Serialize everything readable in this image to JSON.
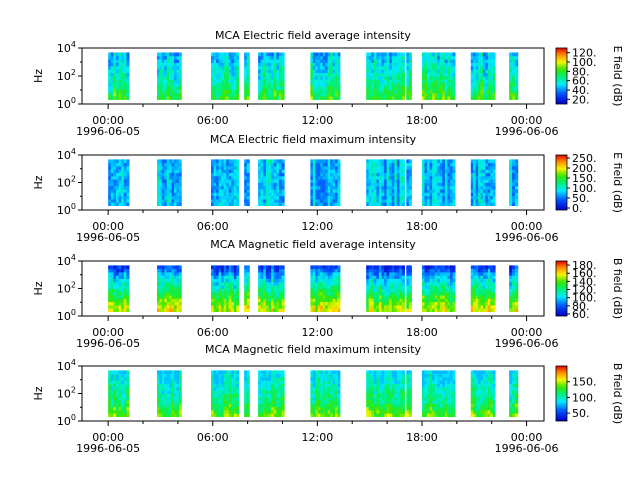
{
  "chart_data": [
    {
      "type": "heatmap",
      "title": "MCA  Electric field average intensity",
      "ylabel": "Hz",
      "colorbar_label": "E field (dB)",
      "colorbar_ticks": [
        "20.",
        "40.",
        "60.",
        "80.",
        "100.",
        "120."
      ],
      "colorbar_range": [
        10,
        130
      ],
      "y_ticks": [
        "10^0",
        "10^2",
        "10^4"
      ],
      "x_ticks": [
        "00:00",
        "06:00",
        "12:00",
        "18:00",
        "00:00"
      ],
      "x_start_date": "1996-06-05",
      "x_end_date": "1996-06-06",
      "profile": [
        [
          0,
          0.6
        ],
        [
          0.35,
          0.45
        ],
        [
          1,
          0.3
        ]
      ],
      "intensity_range": [
        0.2,
        0.95
      ],
      "data_segments": [
        [
          0.0,
          1.2
        ],
        [
          2.8,
          4.2
        ],
        [
          5.9,
          7.5
        ],
        [
          7.8,
          8.1
        ],
        [
          8.6,
          10.1
        ],
        [
          11.6,
          13.3
        ],
        [
          14.8,
          17.0
        ],
        [
          17.1,
          17.4
        ],
        [
          18.0,
          19.9
        ],
        [
          20.8,
          22.2
        ],
        [
          23.0,
          23.5
        ]
      ],
      "time_range_hours": [
        -1.5,
        25.0
      ]
    },
    {
      "type": "heatmap",
      "title": "MCA  Electric field maximum intensity",
      "ylabel": "Hz",
      "colorbar_label": "E field (dB)",
      "colorbar_ticks": [
        "0.",
        "50.",
        "100.",
        "150.",
        "200.",
        "250."
      ],
      "colorbar_range": [
        -10,
        265
      ],
      "y_ticks": [
        "10^0",
        "10^2",
        "10^4"
      ],
      "x_ticks": [
        "00:00",
        "06:00",
        "12:00",
        "18:00",
        "00:00"
      ],
      "x_start_date": "1996-06-05",
      "x_end_date": "1996-06-06",
      "profile": [
        [
          0,
          0.3
        ],
        [
          1,
          0.3
        ]
      ],
      "intensity_range": [
        0.2,
        0.55
      ],
      "data_segments": [
        [
          0.0,
          1.2
        ],
        [
          2.8,
          4.2
        ],
        [
          5.9,
          7.5
        ],
        [
          7.8,
          8.1
        ],
        [
          8.6,
          10.1
        ],
        [
          11.6,
          13.3
        ],
        [
          14.8,
          17.0
        ],
        [
          17.1,
          17.4
        ],
        [
          18.0,
          19.9
        ],
        [
          20.8,
          22.2
        ],
        [
          23.0,
          23.5
        ]
      ],
      "time_range_hours": [
        -1.5,
        25.0
      ]
    },
    {
      "type": "heatmap",
      "title": "MCA  Magnetic field average intensity",
      "ylabel": "Hz",
      "colorbar_label": "B field (dB)",
      "colorbar_ticks": [
        "60.",
        "80.",
        "100.",
        "120.",
        "140.",
        "160.",
        "180."
      ],
      "colorbar_range": [
        55,
        190
      ],
      "y_ticks": [
        "10^0",
        "10^2",
        "10^4"
      ],
      "x_ticks": [
        "00:00",
        "06:00",
        "12:00",
        "18:00",
        "00:00"
      ],
      "x_start_date": "1996-06-05",
      "x_end_date": "1996-06-06",
      "profile": [
        [
          0,
          0.75
        ],
        [
          0.25,
          0.62
        ],
        [
          0.5,
          0.45
        ],
        [
          0.75,
          0.32
        ],
        [
          1,
          0.1
        ]
      ],
      "intensity_range": [
        0.05,
        0.85
      ],
      "data_segments": [
        [
          0.0,
          1.2
        ],
        [
          2.8,
          4.2
        ],
        [
          5.9,
          7.5
        ],
        [
          7.8,
          8.1
        ],
        [
          8.6,
          10.1
        ],
        [
          11.6,
          13.3
        ],
        [
          14.8,
          17.0
        ],
        [
          17.1,
          17.4
        ],
        [
          18.0,
          19.9
        ],
        [
          20.8,
          22.2
        ],
        [
          23.0,
          23.5
        ]
      ],
      "time_range_hours": [
        -1.5,
        25.0
      ]
    },
    {
      "type": "heatmap",
      "title": "MCA  Magnetic field maximum intensity",
      "ylabel": "Hz",
      "colorbar_label": "B field (dB)",
      "colorbar_ticks": [
        "50.",
        "100.",
        "150."
      ],
      "colorbar_range": [
        25,
        200
      ],
      "y_ticks": [
        "10^0",
        "10^2",
        "10^4"
      ],
      "x_ticks": [
        "00:00",
        "06:00",
        "12:00",
        "18:00",
        "00:00"
      ],
      "x_start_date": "1996-06-05",
      "x_end_date": "1996-06-06",
      "profile": [
        [
          0,
          0.65
        ],
        [
          0.3,
          0.5
        ],
        [
          0.7,
          0.4
        ],
        [
          1,
          0.32
        ]
      ],
      "intensity_range": [
        0.3,
        0.85
      ],
      "data_segments": [
        [
          0.0,
          1.2
        ],
        [
          2.8,
          4.2
        ],
        [
          5.9,
          7.5
        ],
        [
          7.8,
          8.1
        ],
        [
          8.6,
          10.1
        ],
        [
          11.6,
          13.3
        ],
        [
          14.8,
          17.0
        ],
        [
          17.1,
          17.4
        ],
        [
          18.0,
          19.9
        ],
        [
          20.8,
          22.2
        ],
        [
          23.0,
          23.5
        ]
      ],
      "time_range_hours": [
        -1.5,
        25.0
      ]
    }
  ]
}
